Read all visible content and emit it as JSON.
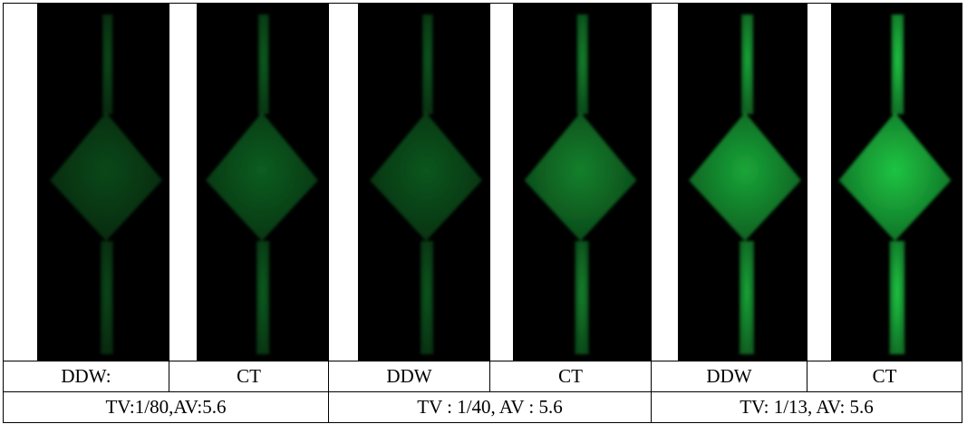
{
  "panels": [
    {
      "label": "DDW:",
      "brightness": 0.35
    },
    {
      "label": "CT",
      "brightness": 0.45
    },
    {
      "label": "DDW",
      "brightness": 0.42
    },
    {
      "label": "CT",
      "brightness": 0.62
    },
    {
      "label": "DDW",
      "brightness": 0.8
    },
    {
      "label": "CT",
      "brightness": 0.95
    }
  ],
  "settings": [
    {
      "text": "TV:1/80,AV:5.6"
    },
    {
      "text": "TV : 1/40, AV : 5.6"
    },
    {
      "text": "TV: 1/13, AV: 5.6"
    }
  ],
  "colors": {
    "glow": "#1fcf46",
    "background": "#000000",
    "border": "#000000"
  }
}
